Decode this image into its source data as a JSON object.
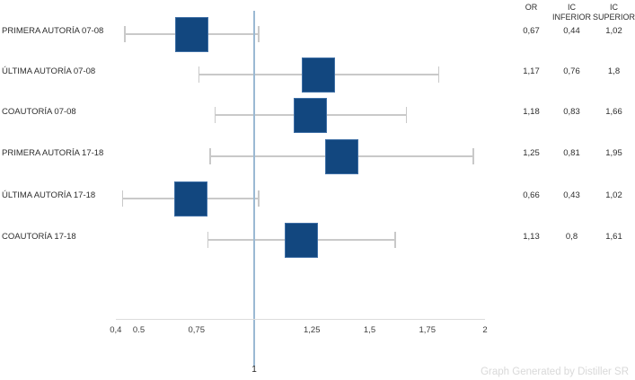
{
  "watermark": "Graph Generated by Distiller SR",
  "table": {
    "col_or": "OR",
    "col_ic_inf_line1": "IC",
    "col_ic_inf_line2": "INFERIOR",
    "col_ic_sup_line1": "IC",
    "col_ic_sup_line2": "SUPERIOR"
  },
  "chart_data": {
    "type": "forest",
    "title": "",
    "xlabel": "",
    "ylabel": "",
    "xlim": [
      0.4,
      2
    ],
    "grid": false,
    "legend": "none",
    "x_ticks": [
      {
        "value": 0.4,
        "label": "0,4"
      },
      {
        "value": 0.5,
        "label": "0.5"
      },
      {
        "value": 0.75,
        "label": "0,75"
      },
      {
        "value": 1.25,
        "label": "1,25"
      },
      {
        "value": 1.5,
        "label": "1,5"
      },
      {
        "value": 1.75,
        "label": "1,75"
      },
      {
        "value": 2,
        "label": "2"
      }
    ],
    "reference_line": {
      "value": 1,
      "label": "1"
    },
    "rows": [
      {
        "label": "PRIMERA AUTORÍA 07-08",
        "or": 0.67,
        "ic_inferior": 0.44,
        "ic_superior": 1.02,
        "or_label": "0,67",
        "ic_inferior_label": "0,44",
        "ic_superior_label": "1,02"
      },
      {
        "label": "ÚLTIMA AUTORÍA 07-08",
        "or": 1.17,
        "ic_inferior": 0.76,
        "ic_superior": 1.8,
        "or_label": "1,17",
        "ic_inferior_label": "0,76",
        "ic_superior_label": "1,8"
      },
      {
        "label": "COAUTORÍA 07-08",
        "or": 1.18,
        "ic_inferior": 0.83,
        "ic_superior": 1.66,
        "or_label": "1,18",
        "ic_inferior_label": "0,83",
        "ic_superior_label": "1,66"
      },
      {
        "label": "PRIMERA AUTORÍA 17-18",
        "or": 1.25,
        "ic_inferior": 0.81,
        "ic_superior": 1.95,
        "or_label": "1,25",
        "ic_inferior_label": "0,81",
        "ic_superior_label": "1,95"
      },
      {
        "label": "ÚLTIMA AUTORÍA 17-18",
        "or": 0.66,
        "ic_inferior": 0.43,
        "ic_superior": 1.02,
        "or_label": "0,66",
        "ic_inferior_label": "0,43",
        "ic_superior_label": "1,02"
      },
      {
        "label": "COAUTORÍA 17-18",
        "or": 1.13,
        "ic_inferior": 0.8,
        "ic_superior": 1.61,
        "or_label": "1,13",
        "ic_inferior_label": "0,8",
        "ic_superior_label": "1,61"
      }
    ],
    "colors": {
      "box_fill": "#12477f",
      "box_border": "#3f6fa5",
      "whisker": "#c9c9c9",
      "reference_line": "#9bb9d3",
      "axis_line": "#dcdcdc",
      "text": "#2d2d2d",
      "watermark": "#d9d9d9"
    }
  }
}
